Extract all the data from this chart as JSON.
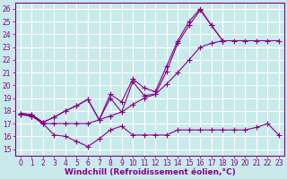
{
  "background_color": "#c8eaea",
  "grid_color": "#aadddd",
  "line_color": "#880088",
  "xlabel": "Windchill (Refroidissement éolien,°C)",
  "xlabel_fontsize": 6.5,
  "tick_fontsize": 5.5,
  "ylabel_ticks": [
    15,
    16,
    17,
    18,
    19,
    20,
    21,
    22,
    23,
    24,
    25,
    26
  ],
  "xlim": [
    -0.5,
    23.5
  ],
  "ylim": [
    14.5,
    26.5
  ],
  "x_ticks": [
    0,
    1,
    2,
    3,
    4,
    5,
    6,
    7,
    8,
    9,
    10,
    11,
    12,
    13,
    14,
    15,
    16,
    17,
    18,
    19,
    20,
    21,
    22,
    23
  ],
  "series1_x": [
    0,
    1,
    2,
    3,
    4,
    5,
    6,
    7,
    8,
    9,
    10,
    11,
    12,
    13,
    14,
    15,
    16,
    17,
    18,
    19,
    20,
    21,
    22,
    23
  ],
  "series1_y": [
    17.7,
    17.6,
    17.0,
    16.1,
    16.0,
    15.6,
    15.2,
    15.8,
    16.5,
    16.8,
    16.1,
    16.1,
    16.1,
    16.1,
    16.5,
    16.5,
    16.5,
    16.5,
    16.5,
    16.5,
    16.5,
    16.7,
    17.0,
    16.1
  ],
  "series2_x": [
    0,
    1,
    2,
    3,
    4,
    5,
    6,
    7,
    8,
    9,
    10,
    11,
    12,
    13,
    14,
    15,
    16,
    17,
    18,
    19,
    20,
    21,
    22,
    23
  ],
  "series2_y": [
    17.7,
    17.6,
    17.0,
    17.0,
    17.0,
    17.0,
    17.0,
    17.3,
    17.6,
    17.9,
    18.5,
    19.0,
    19.3,
    20.1,
    21.0,
    22.0,
    23.0,
    23.3,
    23.5,
    23.5,
    23.5,
    23.5,
    23.5,
    23.5
  ],
  "series3_x": [
    0,
    1,
    2,
    3,
    4,
    5,
    6,
    7,
    8,
    9,
    10,
    11,
    12,
    13,
    14,
    15,
    16,
    17,
    18,
    19,
    20,
    21,
    22,
    23
  ],
  "series3_y": [
    17.8,
    17.7,
    17.1,
    17.5,
    18.0,
    18.4,
    18.9,
    17.3,
    19.0,
    17.9,
    20.3,
    19.2,
    19.3,
    21.1,
    23.3,
    24.7,
    25.9,
    24.7,
    23.5,
    null,
    null,
    null,
    null,
    null
  ],
  "series4_x": [
    0,
    1,
    2,
    3,
    4,
    5,
    6,
    7,
    8,
    9,
    10,
    11,
    12,
    13,
    14,
    15,
    16,
    17,
    18,
    19,
    20,
    21,
    22,
    23
  ],
  "series4_y": [
    17.8,
    17.7,
    17.1,
    17.5,
    18.0,
    18.4,
    18.9,
    17.3,
    19.3,
    18.7,
    20.5,
    19.8,
    19.5,
    21.5,
    23.5,
    25.0,
    26.0,
    24.7,
    23.5,
    null,
    null,
    null,
    null,
    null
  ]
}
